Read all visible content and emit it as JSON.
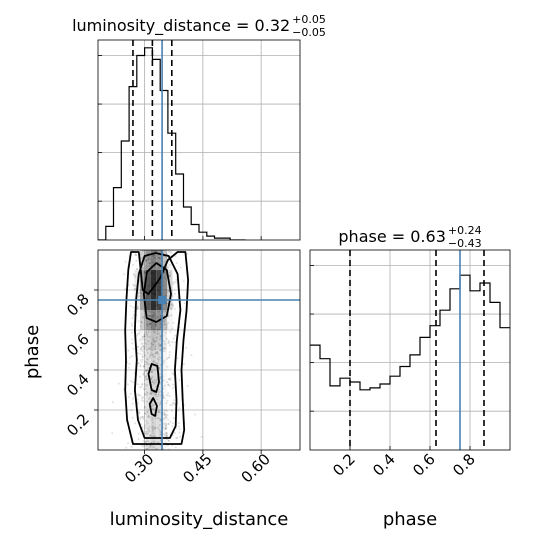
{
  "chart_data": {
    "type": "corner",
    "truth": {
      "luminosity_distance": 0.345,
      "phase": 0.75
    },
    "colors": {
      "truth": "#4682b4",
      "hist": "#000000",
      "grid": "#b0b0b0",
      "density": "#000000"
    },
    "panels": [
      {
        "id": "hist-luminosity-distance",
        "type": "step-histogram",
        "title": {
          "param": "luminosity_distance",
          "value": "0.32",
          "plus": "+0.05",
          "minus": "−0.05"
        },
        "xlim": [
          0.18,
          0.7
        ],
        "ylim": [
          0,
          1
        ],
        "bin_edges": [
          0.18,
          0.2,
          0.22,
          0.24,
          0.26,
          0.28,
          0.3,
          0.32,
          0.34,
          0.36,
          0.38,
          0.4,
          0.42,
          0.44,
          0.46,
          0.48,
          0.5,
          0.52,
          0.54,
          0.56
        ],
        "counts": [
          0.0,
          0.07,
          0.27,
          0.51,
          0.79,
          0.95,
          0.99,
          0.93,
          0.77,
          0.55,
          0.34,
          0.17,
          0.08,
          0.04,
          0.02,
          0.01,
          0.01,
          0.0,
          0.0
        ],
        "quantiles": [
          0.27,
          0.32,
          0.37
        ],
        "truth": 0.345,
        "grid": true
      },
      {
        "id": "hist-phase",
        "type": "step-histogram",
        "title": {
          "param": "phase",
          "value": "0.63",
          "plus": "+0.24",
          "minus": "−0.43"
        },
        "xlim": [
          0.0,
          1.0
        ],
        "ylim": [
          0,
          1
        ],
        "bin_edges": [
          0.0,
          0.05,
          0.1,
          0.15,
          0.2,
          0.25,
          0.3,
          0.35,
          0.4,
          0.45,
          0.5,
          0.55,
          0.6,
          0.65,
          0.7,
          0.75,
          0.8,
          0.85,
          0.9,
          0.95,
          1.0
        ],
        "counts": [
          0.54,
          0.47,
          0.33,
          0.37,
          0.35,
          0.31,
          0.32,
          0.34,
          0.38,
          0.43,
          0.49,
          0.58,
          0.64,
          0.72,
          0.83,
          0.9,
          0.82,
          0.86,
          0.76,
          0.63
        ],
        "quantiles": [
          0.2,
          0.63,
          0.87
        ],
        "truth": 0.75,
        "grid": true,
        "xticks": [
          0.2,
          0.4,
          0.6,
          0.8
        ],
        "xticklabels": [
          "0.2",
          "0.4",
          "0.6",
          "0.8"
        ],
        "xlabel": "phase"
      },
      {
        "id": "density-2d",
        "type": "hist2d-contour",
        "xlim": [
          0.18,
          0.7
        ],
        "ylim": [
          0.0,
          1.0
        ],
        "xticks": [
          0.3,
          0.45,
          0.6
        ],
        "xticklabels": [
          "0.30",
          "0.45",
          "0.60"
        ],
        "yticks": [
          0.2,
          0.4,
          0.6,
          0.8
        ],
        "yticklabels": [
          "0.2",
          "0.4",
          "0.6",
          "0.8"
        ],
        "xlabel": "luminosity_distance",
        "ylabel": "phase",
        "x_spread": [
          0.24,
          0.44
        ],
        "contours": [
          {
            "level": "outer",
            "points": [
              [
                0.27,
                0.03
              ],
              [
                0.255,
                0.15
              ],
              [
                0.25,
                0.3
              ],
              [
                0.252,
                0.45
              ],
              [
                0.25,
                0.6
              ],
              [
                0.253,
                0.75
              ],
              [
                0.258,
                0.9
              ],
              [
                0.265,
                0.99
              ],
              [
                0.285,
                0.99
              ],
              [
                0.29,
                0.9
              ],
              [
                0.295,
                0.8
              ],
              [
                0.31,
                0.78
              ],
              [
                0.34,
                0.86
              ],
              [
                0.36,
                0.95
              ],
              [
                0.385,
                0.99
              ],
              [
                0.405,
                0.99
              ],
              [
                0.412,
                0.85
              ],
              [
                0.408,
                0.7
              ],
              [
                0.4,
                0.55
              ],
              [
                0.395,
                0.4
              ],
              [
                0.398,
                0.25
              ],
              [
                0.402,
                0.1
              ],
              [
                0.395,
                0.03
              ]
            ]
          },
          {
            "level": "mid",
            "points": [
              [
                0.3,
                0.06
              ],
              [
                0.283,
                0.15
              ],
              [
                0.275,
                0.3
              ],
              [
                0.28,
                0.45
              ],
              [
                0.275,
                0.6
              ],
              [
                0.278,
                0.75
              ],
              [
                0.285,
                0.88
              ],
              [
                0.3,
                0.97
              ],
              [
                0.328,
                0.985
              ],
              [
                0.362,
                0.97
              ],
              [
                0.385,
                0.88
              ],
              [
                0.392,
                0.7
              ],
              [
                0.383,
                0.55
              ],
              [
                0.378,
                0.4
              ],
              [
                0.382,
                0.25
              ],
              [
                0.38,
                0.12
              ],
              [
                0.365,
                0.06
              ]
            ]
          },
          {
            "level": "inner",
            "points": [
              [
                0.305,
                0.66
              ],
              [
                0.298,
                0.78
              ],
              [
                0.306,
                0.89
              ],
              [
                0.33,
                0.935
              ],
              [
                0.357,
                0.9
              ],
              [
                0.368,
                0.78
              ],
              [
                0.357,
                0.67
              ],
              [
                0.33,
                0.64
              ]
            ]
          },
          {
            "level": "inner-low",
            "points": [
              [
                0.318,
                0.3
              ],
              [
                0.31,
                0.38
              ],
              [
                0.318,
                0.43
              ],
              [
                0.333,
                0.42
              ],
              [
                0.337,
                0.34
              ],
              [
                0.33,
                0.29
              ]
            ]
          },
          {
            "level": "inner-low2",
            "points": [
              [
                0.318,
                0.18
              ],
              [
                0.313,
                0.23
              ],
              [
                0.322,
                0.26
              ],
              [
                0.332,
                0.22
              ],
              [
                0.327,
                0.17
              ]
            ]
          }
        ],
        "truth_point": [
          0.345,
          0.75
        ]
      }
    ]
  }
}
